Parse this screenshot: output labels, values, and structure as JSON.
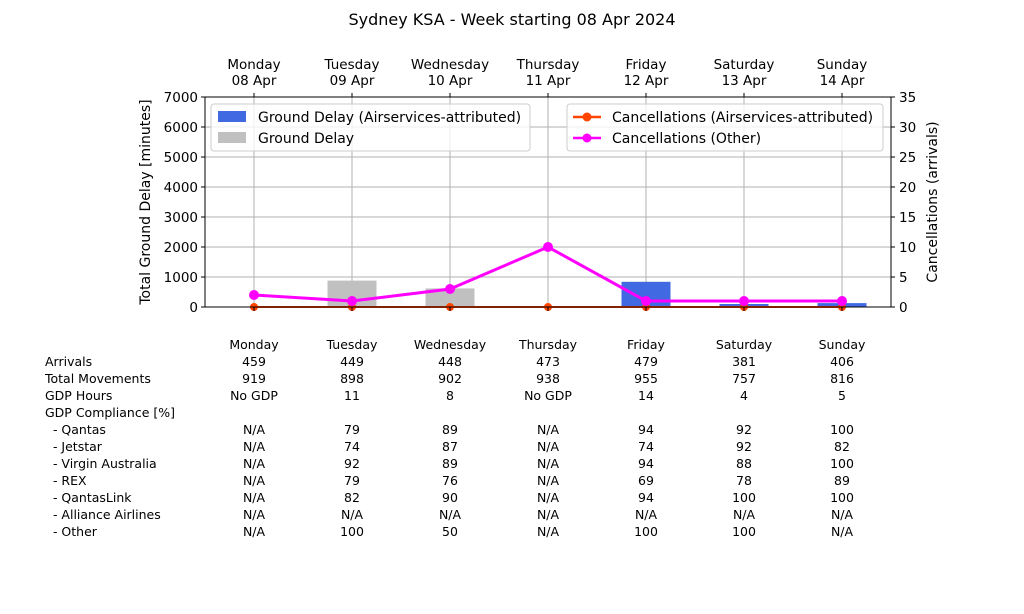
{
  "chart_data": {
    "type": "bar+line",
    "title": "Sydney KSA - Week starting 08 Apr 2024",
    "categories": [
      {
        "day": "Monday",
        "date": "08 Apr"
      },
      {
        "day": "Tuesday",
        "date": "09 Apr"
      },
      {
        "day": "Wednesday",
        "date": "10 Apr"
      },
      {
        "day": "Thursday",
        "date": "11 Apr"
      },
      {
        "day": "Friday",
        "date": "12 Apr"
      },
      {
        "day": "Saturday",
        "date": "13 Apr"
      },
      {
        "day": "Sunday",
        "date": "14 Apr"
      }
    ],
    "ylabel_left": "Total Ground Delay [minutes]",
    "ylabel_right": "Cancellations (arrivals)",
    "ylim_left": [
      0,
      7000
    ],
    "yticks_left": [
      0,
      1000,
      2000,
      3000,
      4000,
      5000,
      6000,
      7000
    ],
    "ylim_right": [
      0,
      35
    ],
    "yticks_right": [
      0,
      5,
      10,
      15,
      20,
      25,
      30,
      35
    ],
    "grid": true,
    "bar_series": [
      {
        "name": "Ground Delay (Airservices-attributed)",
        "color": "#4169e1",
        "values": [
          0,
          0,
          0,
          0,
          840,
          100,
          130
        ]
      },
      {
        "name": "Ground Delay",
        "color": "#c0c0c0",
        "values": [
          0,
          880,
          620,
          0,
          0,
          0,
          0
        ]
      }
    ],
    "line_series": [
      {
        "name": "Cancellations (Airservices-attributed)",
        "color": "#ff4500",
        "values": [
          0,
          0,
          0,
          0,
          0,
          0,
          0
        ]
      },
      {
        "name": "Cancellations (Other)",
        "color": "#ff00ff",
        "values": [
          2,
          1,
          3,
          10,
          1,
          1,
          1
        ]
      }
    ],
    "legend_placement": [
      "upper-left",
      "upper-right"
    ]
  },
  "table": {
    "header": [
      "Monday",
      "Tuesday",
      "Wednesday",
      "Thursday",
      "Friday",
      "Saturday",
      "Sunday"
    ],
    "rows": [
      {
        "label": "Arrivals",
        "values": [
          "459",
          "449",
          "448",
          "473",
          "479",
          "381",
          "406"
        ]
      },
      {
        "label": "Total Movements",
        "values": [
          "919",
          "898",
          "902",
          "938",
          "955",
          "757",
          "816"
        ]
      },
      {
        "label": "GDP Hours",
        "values": [
          "No GDP",
          "11",
          "8",
          "No GDP",
          "14",
          "4",
          "5"
        ]
      },
      {
        "label": "GDP Compliance [%]",
        "values": [
          "",
          "",
          "",
          "",
          "",
          "",
          ""
        ]
      },
      {
        "label": "  - Qantas",
        "values": [
          "N/A",
          "79",
          "89",
          "N/A",
          "94",
          "92",
          "100"
        ]
      },
      {
        "label": "  - Jetstar",
        "values": [
          "N/A",
          "74",
          "87",
          "N/A",
          "74",
          "92",
          "82"
        ]
      },
      {
        "label": "  - Virgin Australia",
        "values": [
          "N/A",
          "92",
          "89",
          "N/A",
          "94",
          "88",
          "100"
        ]
      },
      {
        "label": "  - REX",
        "values": [
          "N/A",
          "79",
          "76",
          "N/A",
          "69",
          "78",
          "89"
        ]
      },
      {
        "label": "  - QantasLink",
        "values": [
          "N/A",
          "82",
          "90",
          "N/A",
          "94",
          "100",
          "100"
        ]
      },
      {
        "label": "  - Alliance Airlines",
        "values": [
          "N/A",
          "N/A",
          "N/A",
          "N/A",
          "N/A",
          "N/A",
          "N/A"
        ]
      },
      {
        "label": "  - Other",
        "values": [
          "N/A",
          "100",
          "50",
          "N/A",
          "100",
          "100",
          "N/A"
        ]
      }
    ]
  }
}
